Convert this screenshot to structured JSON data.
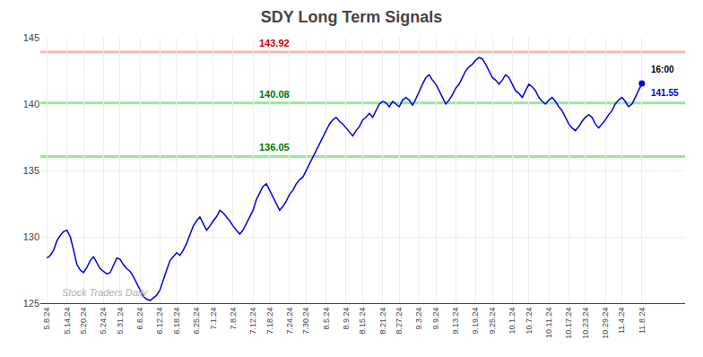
{
  "chart_data": {
    "type": "line",
    "title": "SDY Long Term Signals",
    "color": "#0000dd",
    "grid": true,
    "ylim": [
      125,
      145
    ],
    "yticks": [
      125,
      130,
      135,
      140,
      145
    ],
    "hlines": [
      {
        "value": 143.92,
        "label": "143.92",
        "color": "#f5b8b8",
        "label_color": "#cc0000"
      },
      {
        "value": 140.08,
        "label": "140.08",
        "color": "#90ee90",
        "label_color": "#007700"
      },
      {
        "value": 136.05,
        "label": "136.05",
        "color": "#90ee90",
        "label_color": "#007700"
      }
    ],
    "end_labels": [
      {
        "text": "16:00",
        "color": "#000000"
      },
      {
        "text": "141.55",
        "color": "#0000cc"
      }
    ],
    "watermark": {
      "text": "Stock Traders Daily",
      "color": "#b0b0b0"
    },
    "categories": [
      "5.8.24",
      null,
      null,
      null,
      null,
      null,
      "5.14.24",
      null,
      null,
      null,
      null,
      "5.20.24",
      null,
      null,
      null,
      null,
      null,
      "5.24.24",
      null,
      null,
      null,
      null,
      "5.31.24",
      null,
      null,
      null,
      null,
      null,
      "6.6.24",
      null,
      null,
      null,
      null,
      null,
      "6.12.24",
      null,
      null,
      null,
      null,
      "6.18.24",
      null,
      null,
      null,
      null,
      null,
      "6.25.24",
      null,
      null,
      null,
      null,
      "7.1.24",
      null,
      null,
      null,
      null,
      null,
      "7.8.24",
      null,
      null,
      null,
      null,
      null,
      "7.12.24",
      null,
      null,
      null,
      null,
      "7.18.24",
      null,
      null,
      null,
      null,
      null,
      "7.24.24",
      null,
      null,
      null,
      null,
      "7.30.24",
      null,
      null,
      null,
      null,
      null,
      "8.5.24",
      null,
      null,
      null,
      null,
      null,
      "8.9.24",
      null,
      null,
      null,
      null,
      "8.15.24",
      null,
      null,
      null,
      null,
      null,
      "8.21.24",
      null,
      null,
      null,
      null,
      "8.27.24",
      null,
      null,
      null,
      null,
      null,
      "9.3.24",
      null,
      null,
      null,
      null,
      "9.9.24",
      null,
      null,
      null,
      null,
      null,
      "9.13.24",
      null,
      null,
      null,
      null,
      null,
      "9.19.24",
      null,
      null,
      null,
      null,
      "9.25.24",
      null,
      null,
      null,
      null,
      null,
      "10.1.24",
      null,
      null,
      null,
      null,
      "10.7.24",
      null,
      null,
      null,
      null,
      null,
      "10.11.24",
      null,
      null,
      null,
      null,
      null,
      "10.17.24",
      null,
      null,
      null,
      null,
      "10.23.24",
      null,
      null,
      null,
      null,
      null,
      "10.29.24",
      null,
      null,
      null,
      null,
      "11.4.24",
      null,
      null,
      null,
      null,
      null,
      "11.8.24"
    ],
    "values": [
      128.4,
      128.6,
      129.0,
      129.7,
      130.1,
      130.4,
      130.5,
      130.0,
      129.0,
      127.9,
      127.5,
      127.3,
      127.7,
      128.2,
      128.5,
      128.0,
      127.6,
      127.4,
      127.2,
      127.3,
      127.8,
      128.4,
      128.3,
      127.9,
      127.6,
      127.4,
      127.0,
      126.5,
      126.1,
      125.5,
      125.3,
      125.2,
      125.4,
      125.6,
      126.0,
      126.8,
      127.5,
      128.2,
      128.5,
      128.8,
      128.6,
      129.0,
      129.5,
      130.2,
      130.8,
      131.2,
      131.5,
      131.0,
      130.5,
      130.8,
      131.2,
      131.5,
      132.0,
      131.8,
      131.5,
      131.2,
      130.8,
      130.5,
      130.2,
      130.5,
      131.0,
      131.5,
      132.0,
      132.8,
      133.3,
      133.8,
      134.0,
      133.5,
      133.0,
      132.5,
      132.0,
      132.3,
      132.7,
      133.2,
      133.5,
      134.0,
      134.3,
      134.5,
      135.0,
      135.5,
      136.0,
      136.5,
      137.0,
      137.5,
      138.0,
      138.5,
      138.8,
      139.0,
      138.7,
      138.5,
      138.2,
      137.9,
      137.6,
      138.0,
      138.3,
      138.8,
      139.0,
      139.3,
      139.0,
      139.5,
      140.0,
      140.2,
      140.1,
      139.8,
      140.2,
      140.0,
      139.8,
      140.3,
      140.5,
      140.3,
      139.9,
      140.4,
      141.0,
      141.5,
      142.0,
      142.2,
      141.8,
      141.5,
      141.0,
      140.5,
      140.0,
      140.3,
      140.7,
      141.2,
      141.5,
      142.0,
      142.5,
      142.8,
      143.0,
      143.3,
      143.5,
      143.4,
      143.0,
      142.5,
      142.0,
      141.8,
      141.5,
      141.8,
      142.2,
      142.0,
      141.5,
      141.0,
      140.8,
      140.5,
      141.0,
      141.5,
      141.3,
      141.0,
      140.5,
      140.2,
      140.0,
      140.3,
      140.5,
      140.2,
      139.8,
      139.5,
      139.0,
      138.5,
      138.2,
      138.0,
      138.3,
      138.7,
      139.0,
      139.2,
      139.0,
      138.5,
      138.2,
      138.5,
      138.8,
      139.2,
      139.5,
      140.0,
      140.3,
      140.5,
      140.2,
      139.8,
      140.0,
      140.5,
      141.0,
      141.55
    ]
  }
}
